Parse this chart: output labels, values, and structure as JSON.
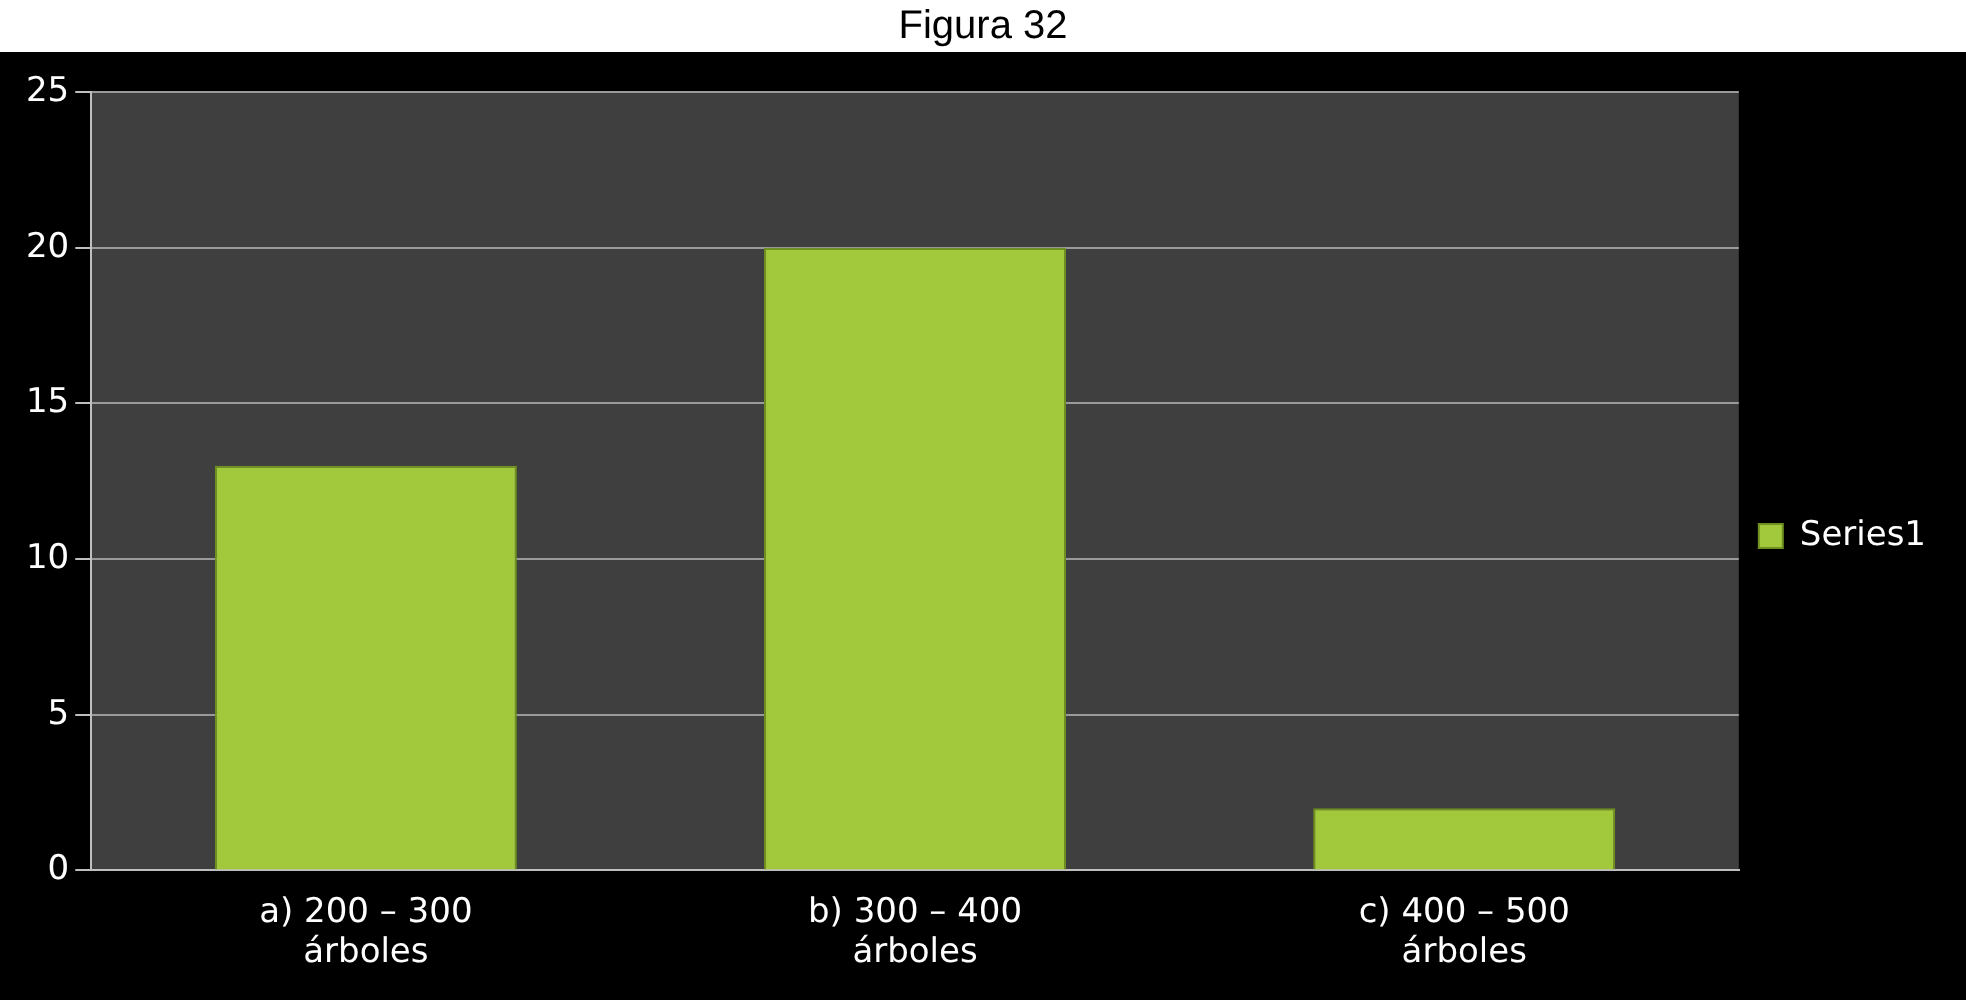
{
  "chart_data": {
    "type": "bar",
    "title": "Figura 32",
    "categories": [
      "a) 200 – 300 árboles",
      "b) 300 – 400 árboles",
      "c) 400 – 500 árboles"
    ],
    "series": [
      {
        "name": "Series1",
        "color": "#a2c83c",
        "values": [
          13,
          20,
          2
        ]
      }
    ],
    "ylim": [
      0,
      25
    ],
    "yticks": [
      0,
      5,
      10,
      15,
      20,
      25
    ],
    "grid": "y",
    "legend": "right"
  }
}
